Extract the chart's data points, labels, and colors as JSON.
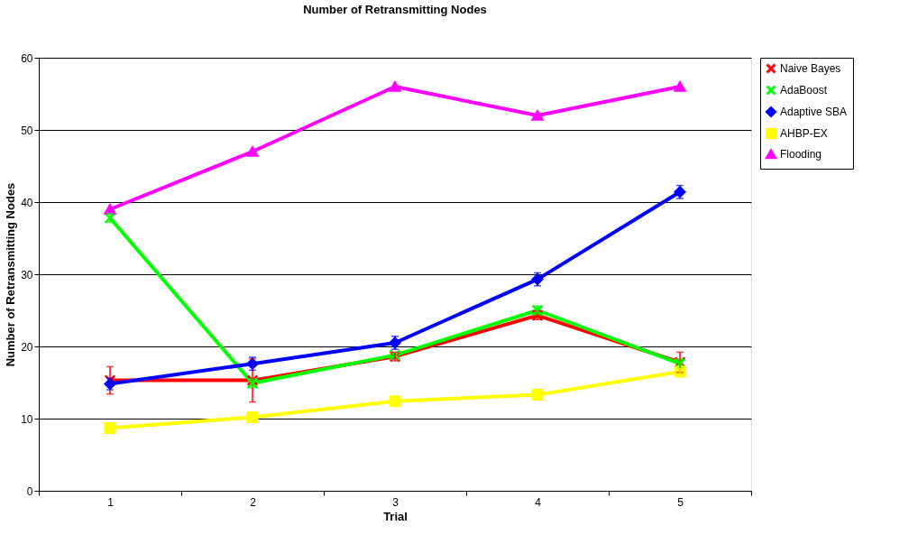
{
  "chart_data": {
    "type": "line",
    "title": "Number of Retransmitting Nodes",
    "xlabel": "Trial",
    "ylabel": "Number of Retransmitting Nodes",
    "categories": [
      "1",
      "2",
      "3",
      "4",
      "5"
    ],
    "ylim": [
      0,
      60
    ],
    "yticks": [
      0,
      10,
      20,
      30,
      40,
      50,
      60
    ],
    "grid": "y",
    "legend": "right",
    "series": [
      {
        "name": "Naive Bayes",
        "color": "#ff0000",
        "marker": "cross",
        "values": [
          15.3,
          15.3,
          18.6,
          24.3,
          17.8
        ],
        "errors": [
          1.9,
          3.0,
          0.6,
          0.6,
          1.4
        ]
      },
      {
        "name": "AdaBoost",
        "color": "#00ff00",
        "marker": "cross",
        "values": [
          37.8,
          14.9,
          18.8,
          25.0,
          17.6
        ],
        "errors": [
          0.6,
          0.6,
          null,
          0.6,
          0.6
        ]
      },
      {
        "name": "Adaptive SBA",
        "color": "#0000ff",
        "marker": "diamond",
        "values": [
          14.8,
          17.6,
          20.5,
          29.3,
          41.4
        ],
        "errors": [
          0.8,
          0.9,
          0.9,
          0.9,
          0.9
        ]
      },
      {
        "name": "AHBP-EX",
        "color": "#ffff00",
        "marker": "square",
        "values": [
          8.7,
          10.2,
          12.4,
          13.3,
          16.5
        ],
        "errors": [
          0.5,
          0.5,
          0.5,
          0.5,
          0.5
        ]
      },
      {
        "name": "Flooding",
        "color": "#ff00ff",
        "marker": "triangle",
        "values": [
          39,
          47,
          56,
          52,
          56
        ]
      }
    ]
  }
}
